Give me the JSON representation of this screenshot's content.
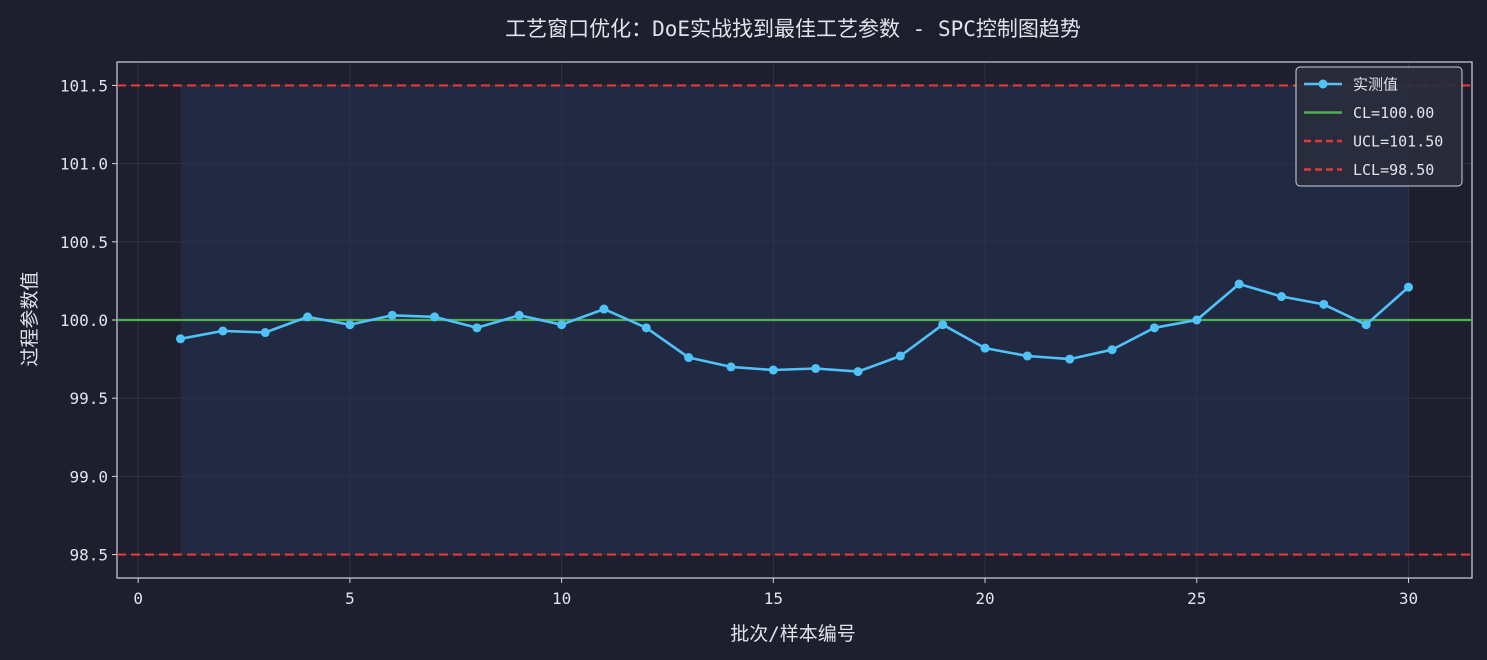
{
  "chart_data": {
    "type": "line",
    "title": "工艺窗口优化：DoE实战找到最佳工艺参数 - SPC控制图趋势",
    "xlabel": "批次/样本编号",
    "ylabel": "过程参数值",
    "xlim": [
      -0.5,
      31.5
    ],
    "ylim": [
      98.35,
      101.65
    ],
    "xticks": [
      0,
      5,
      10,
      15,
      20,
      25,
      30
    ],
    "xtick_labels": [
      "0",
      "5",
      "10",
      "15",
      "20",
      "25",
      "30"
    ],
    "yticks": [
      98.5,
      99.0,
      99.5,
      100.0,
      100.5,
      101.0,
      101.5
    ],
    "ytick_labels": [
      "98.5",
      "99.0",
      "99.5",
      "100.0",
      "100.5",
      "101.0",
      "101.5"
    ],
    "grid": true,
    "legend_position": "top-right",
    "series": [
      {
        "name": "实测值",
        "x": [
          1,
          2,
          3,
          4,
          5,
          6,
          7,
          8,
          9,
          10,
          11,
          12,
          13,
          14,
          15,
          16,
          17,
          18,
          19,
          20,
          21,
          22,
          23,
          24,
          25,
          26,
          27,
          28,
          29,
          30
        ],
        "values": [
          99.88,
          99.93,
          99.92,
          100.02,
          99.97,
          100.03,
          100.02,
          99.95,
          100.03,
          99.97,
          100.07,
          99.95,
          99.76,
          99.7,
          99.68,
          99.69,
          99.67,
          99.77,
          99.97,
          99.82,
          99.77,
          99.75,
          99.81,
          99.95,
          100.0,
          100.23,
          100.15,
          100.1,
          99.97,
          100.21
        ],
        "color": "#4fc3f7",
        "style": "line-marker"
      }
    ],
    "reference_lines": [
      {
        "name": "CL=100.00",
        "value": 100.0,
        "color": "#4caf50",
        "style": "solid"
      },
      {
        "name": "UCL=101.50",
        "value": 101.5,
        "color": "#e53935",
        "style": "dashed"
      },
      {
        "name": "LCL=98.50",
        "value": 98.5,
        "color": "#e53935",
        "style": "dashed"
      }
    ],
    "colors": {
      "figure_background": "#1e1f2e",
      "axes_background": "#1e1f2e",
      "in_control_band": "#222942",
      "axis": "#cfd3dc",
      "text": "#dfe3ea",
      "grid": "#2e3246"
    }
  }
}
